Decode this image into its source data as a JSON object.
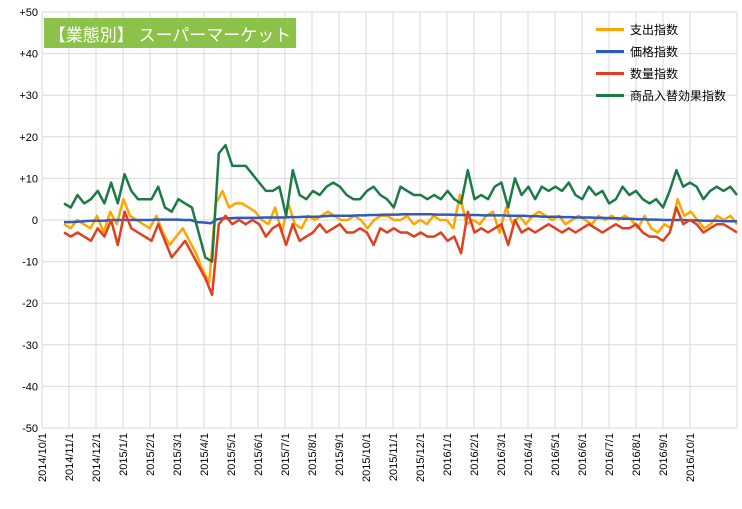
{
  "chart_data": {
    "type": "line",
    "title": "【業態別】 スーパーマーケット",
    "title_bg": "#8BC34A",
    "ylim": [
      -50,
      50
    ],
    "yticks": [
      "+50",
      "+40",
      "+30",
      "+20",
      "+10",
      "0",
      "-10",
      "-20",
      "-30",
      "-40",
      "-50"
    ],
    "ytick_values": [
      50,
      40,
      30,
      20,
      10,
      0,
      -10,
      -20,
      -30,
      -40,
      -50
    ],
    "xticks": [
      "2014/10/1",
      "2014/11/1",
      "2014/12/1",
      "2015/1/1",
      "2015/2/1",
      "2015/3/1",
      "2015/4/1",
      "2015/5/1",
      "2015/6/1",
      "2015/7/1",
      "2015/8/1",
      "2015/9/1",
      "2015/10/1",
      "2015/11/1",
      "2015/12/1",
      "2016/1/1",
      "2016/2/1",
      "2016/3/1",
      "2016/4/1",
      "2016/5/1",
      "2016/6/1",
      "2016/7/1",
      "2016/8/1",
      "2016/9/1",
      "2016/10/1"
    ],
    "grid": true,
    "legend_position": "top-right",
    "series": [
      {
        "name": "支出指数",
        "color": "#FFA500",
        "values": [
          -1,
          -2,
          0,
          -1,
          -2,
          1,
          -3,
          2,
          -1,
          5,
          1,
          0,
          -1,
          -2,
          1,
          -3,
          -6,
          -4,
          -2,
          -5,
          -8,
          -12,
          -15,
          4,
          7,
          3,
          4,
          4,
          3,
          2,
          0,
          -1,
          3,
          -3,
          4,
          -1,
          -2,
          1,
          0,
          1,
          2,
          1,
          0,
          0,
          1,
          0,
          -2,
          0,
          1,
          1,
          0,
          0,
          1,
          -1,
          0,
          -1,
          1,
          0,
          0,
          -2,
          6,
          -1,
          0,
          -1,
          1,
          2,
          -3,
          3,
          -1,
          1,
          -1,
          1,
          2,
          1,
          0,
          1,
          -1,
          0,
          1,
          0,
          -1,
          1,
          0,
          1,
          0,
          1,
          0,
          -2,
          1,
          -2,
          -3,
          -1,
          -2,
          5,
          1,
          2,
          0,
          -2,
          -1,
          1,
          0,
          1,
          -1
        ]
      },
      {
        "name": "価格指数",
        "color": "#2E5CB8",
        "values": [
          -0.5,
          -0.5,
          -0.4,
          -0.3,
          -0.2,
          -0.2,
          -0.2,
          0,
          0,
          0,
          0,
          0,
          0,
          0,
          0.1,
          0.1,
          0.1,
          0.1,
          0,
          0,
          -0.5,
          -0.6,
          -0.8,
          0.2,
          0.4,
          0.4,
          0.5,
          0.5,
          0.5,
          0.5,
          0.6,
          0.6,
          0.6,
          0.6,
          0.7,
          0.7,
          0.8,
          0.8,
          0.8,
          0.9,
          1,
          1,
          1,
          1,
          1.1,
          1.1,
          1.2,
          1.2,
          1.3,
          1.3,
          1.3,
          1.4,
          1.4,
          1.4,
          1.4,
          1.4,
          1.3,
          1.3,
          1.3,
          1.2,
          1.2,
          1.2,
          1.2,
          1.1,
          1.1,
          1.1,
          1.1,
          1,
          1,
          1,
          0.9,
          0.9,
          0.8,
          0.8,
          0.8,
          0.7,
          0.7,
          0.6,
          0.6,
          0.6,
          0.5,
          0.5,
          0.4,
          0.4,
          0.3,
          0.3,
          0.2,
          0.2,
          0.1,
          0.1,
          0,
          0,
          0,
          0,
          -0.1,
          -0.1,
          -0.2,
          -0.2,
          -0.2,
          -0.3,
          -0.3,
          -0.3
        ]
      },
      {
        "name": "数量指数",
        "color": "#E04020",
        "values": [
          -3,
          -4,
          -3,
          -4,
          -5,
          -2,
          -4,
          0,
          -6,
          2,
          -2,
          -3,
          -4,
          -5,
          -1,
          -5,
          -9,
          -7,
          -5,
          -8,
          -11,
          -14,
          -18,
          -1,
          1,
          -1,
          0,
          -1,
          0,
          -1,
          -4,
          -2,
          -1,
          -6,
          -1,
          -5,
          -4,
          -3,
          -1,
          -3,
          -2,
          -1,
          -3,
          -3,
          -2,
          -3,
          -6,
          -2,
          -3,
          -2,
          -3,
          -3,
          -4,
          -3,
          -4,
          -4,
          -3,
          -5,
          -4,
          -8,
          2,
          -3,
          -2,
          -3,
          -2,
          -1,
          -6,
          0,
          -3,
          -2,
          -3,
          -2,
          -1,
          -2,
          -3,
          -2,
          -3,
          -2,
          -1,
          -2,
          -3,
          -2,
          -1,
          -2,
          -2,
          -1,
          -3,
          -4,
          -4,
          -5,
          -3,
          3,
          -1,
          0,
          -1,
          -3,
          -2,
          -1,
          -1,
          -2,
          -3
        ]
      },
      {
        "name": "商品入替効果指数",
        "color": "#1E7A45",
        "values": [
          4,
          3,
          6,
          4,
          5,
          7,
          4,
          9,
          4,
          11,
          7,
          5,
          5,
          5,
          8,
          3,
          2,
          5,
          4,
          3,
          -3,
          -9,
          -10,
          16,
          18,
          13,
          13,
          13,
          11,
          9,
          7,
          7,
          8,
          1,
          12,
          6,
          5,
          7,
          6,
          8,
          9,
          8,
          6,
          5,
          5,
          7,
          8,
          6,
          5,
          3,
          8,
          7,
          6,
          6,
          5,
          6,
          5,
          7,
          5,
          4,
          12,
          5,
          6,
          5,
          8,
          9,
          3,
          10,
          6,
          8,
          5,
          8,
          7,
          8,
          7,
          9,
          6,
          5,
          8,
          6,
          7,
          4,
          5,
          8,
          6,
          7,
          5,
          4,
          5,
          3,
          7,
          12,
          8,
          9,
          8,
          5,
          7,
          8,
          7,
          8,
          6
        ]
      }
    ]
  }
}
